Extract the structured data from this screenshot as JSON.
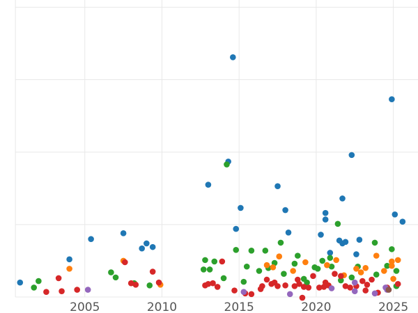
{
  "chart_data": {
    "type": "scatter",
    "title": "",
    "xlabel": "",
    "ylabel": "",
    "xlim": [
      1999.5,
      2026.6
    ],
    "ylim": [
      0,
      41
    ],
    "x_ticks": [
      2005,
      2010,
      2015,
      2020,
      2025
    ],
    "x_tick_labels": [
      "2005",
      "2010",
      "2015",
      "2020",
      "2025"
    ],
    "y_gridlines": [
      0,
      10,
      20,
      30,
      40
    ],
    "grid": true,
    "legend": "none",
    "series": [
      {
        "color": "#1f77b4",
        "points": [
          [
            2000.8,
            2.0
          ],
          [
            2004.0,
            5.2
          ],
          [
            2005.4,
            8.0
          ],
          [
            2007.5,
            8.8
          ],
          [
            2008.7,
            6.7
          ],
          [
            2009.0,
            7.4
          ],
          [
            2009.4,
            6.9
          ],
          [
            2014.3,
            18.7
          ],
          [
            2014.6,
            33.1
          ],
          [
            2014.8,
            9.4
          ],
          [
            2015.1,
            12.3
          ],
          [
            2013.0,
            15.5
          ],
          [
            2017.5,
            15.3
          ],
          [
            2018.0,
            12.0
          ],
          [
            2018.2,
            8.9
          ],
          [
            2020.3,
            8.6
          ],
          [
            2020.6,
            10.7
          ],
          [
            2020.6,
            11.6
          ],
          [
            2020.9,
            6.1
          ],
          [
            2021.5,
            7.8
          ],
          [
            2021.7,
            7.4
          ],
          [
            2021.7,
            13.6
          ],
          [
            2021.9,
            7.6
          ],
          [
            2022.3,
            19.6
          ],
          [
            2022.6,
            5.9
          ],
          [
            2022.8,
            7.9
          ],
          [
            2024.9,
            27.3
          ],
          [
            2025.1,
            11.4
          ],
          [
            2025.6,
            10.4
          ]
        ]
      },
      {
        "color": "#2ca02c",
        "points": [
          [
            2001.7,
            1.3
          ],
          [
            2002.0,
            2.2
          ],
          [
            2006.7,
            3.4
          ],
          [
            2007.0,
            2.7
          ],
          [
            2008.2,
            1.9
          ],
          [
            2009.2,
            1.6
          ],
          [
            2012.8,
            5.1
          ],
          [
            2012.7,
            3.8
          ],
          [
            2013.1,
            3.8
          ],
          [
            2013.4,
            4.9
          ],
          [
            2014.0,
            2.6
          ],
          [
            2014.2,
            18.3
          ],
          [
            2014.8,
            6.5
          ],
          [
            2015.5,
            4.2
          ],
          [
            2015.3,
            2.1
          ],
          [
            2015.8,
            6.4
          ],
          [
            2016.3,
            3.6
          ],
          [
            2016.7,
            6.4
          ],
          [
            2016.9,
            4.0
          ],
          [
            2017.3,
            4.7
          ],
          [
            2017.7,
            7.5
          ],
          [
            2017.9,
            3.2
          ],
          [
            2018.6,
            4.6
          ],
          [
            2018.8,
            5.7
          ],
          [
            2019.2,
            2.5
          ],
          [
            2019.4,
            2.0
          ],
          [
            2019.9,
            4.1
          ],
          [
            2020.1,
            3.9
          ],
          [
            2020.4,
            5.0
          ],
          [
            2020.9,
            5.4
          ],
          [
            2021.0,
            4.2
          ],
          [
            2021.4,
            10.1
          ],
          [
            2021.6,
            2.3
          ],
          [
            2022.3,
            2.7
          ],
          [
            2022.7,
            4.2
          ],
          [
            2023.8,
            7.5
          ],
          [
            2023.9,
            3.1
          ],
          [
            2024.6,
            4.3
          ],
          [
            2024.9,
            6.6
          ],
          [
            2025.2,
            3.6
          ],
          [
            2025.2,
            1.5
          ]
        ]
      },
      {
        "color": "#ff7f0e",
        "points": [
          [
            2004.0,
            3.9
          ],
          [
            2007.5,
            5.0
          ],
          [
            2009.9,
            1.7
          ],
          [
            2016.8,
            4.4
          ],
          [
            2017.2,
            4.1
          ],
          [
            2017.6,
            5.6
          ],
          [
            2018.5,
            3.6
          ],
          [
            2019.3,
            4.8
          ],
          [
            2020.7,
            4.4
          ],
          [
            2021.3,
            5.1
          ],
          [
            2021.8,
            3.0
          ],
          [
            2022.6,
            3.9
          ],
          [
            2022.9,
            3.4
          ],
          [
            2023.2,
            4.0
          ],
          [
            2023.9,
            5.7
          ],
          [
            2024.4,
            3.6
          ],
          [
            2024.9,
            4.3
          ],
          [
            2024.9,
            4.9
          ],
          [
            2025.0,
            2.5
          ],
          [
            2025.3,
            5.1
          ]
        ]
      },
      {
        "color": "#d62728",
        "points": [
          [
            2002.5,
            0.7
          ],
          [
            2003.3,
            2.6
          ],
          [
            2003.5,
            0.8
          ],
          [
            2004.5,
            1.0
          ],
          [
            2007.6,
            4.8
          ],
          [
            2008.0,
            1.9
          ],
          [
            2008.3,
            1.7
          ],
          [
            2009.4,
            3.5
          ],
          [
            2009.8,
            2.0
          ],
          [
            2012.8,
            1.6
          ],
          [
            2013.0,
            1.8
          ],
          [
            2013.3,
            1.9
          ],
          [
            2013.6,
            1.4
          ],
          [
            2013.9,
            4.9
          ],
          [
            2014.7,
            0.9
          ],
          [
            2015.4,
            0.5
          ],
          [
            2015.8,
            0.4
          ],
          [
            2016.4,
            1.1
          ],
          [
            2016.5,
            1.5
          ],
          [
            2016.8,
            2.4
          ],
          [
            2017.1,
            1.8
          ],
          [
            2017.3,
            2.0
          ],
          [
            2017.5,
            1.5
          ],
          [
            2018.0,
            1.6
          ],
          [
            2018.6,
            1.5
          ],
          [
            2018.8,
            2.4
          ],
          [
            2018.9,
            1.8
          ],
          [
            2019.2,
            1.4
          ],
          [
            2019.5,
            1.3
          ],
          [
            2019.8,
            2.9
          ],
          [
            2020.2,
            1.3
          ],
          [
            2020.5,
            1.4
          ],
          [
            2020.6,
            2.0
          ],
          [
            2020.8,
            1.6
          ],
          [
            2021.2,
            3.2
          ],
          [
            2021.6,
            2.9
          ],
          [
            2021.9,
            1.5
          ],
          [
            2022.2,
            1.3
          ],
          [
            2022.6,
            1.5
          ],
          [
            2023.0,
            2.2
          ],
          [
            2023.3,
            1.7
          ],
          [
            2023.6,
            2.4
          ],
          [
            2023.2,
            0.9
          ],
          [
            2024.0,
            0.6
          ],
          [
            2024.6,
            1.3
          ],
          [
            2025.3,
            1.8
          ],
          [
            2019.1,
            -0.1
          ]
        ]
      },
      {
        "color": "#9467bd",
        "points": [
          [
            2005.2,
            1.0
          ],
          [
            2015.3,
            0.7
          ],
          [
            2018.3,
            0.4
          ],
          [
            2021.0,
            1.2
          ],
          [
            2022.5,
            2.0
          ],
          [
            2022.5,
            0.8
          ],
          [
            2023.8,
            0.5
          ],
          [
            2024.5,
            1.3
          ],
          [
            2024.6,
            1.0
          ]
        ]
      },
      {
        "color": "#8c564b",
        "points": [
          [
            2024.7,
            1.0
          ]
        ]
      }
    ]
  }
}
